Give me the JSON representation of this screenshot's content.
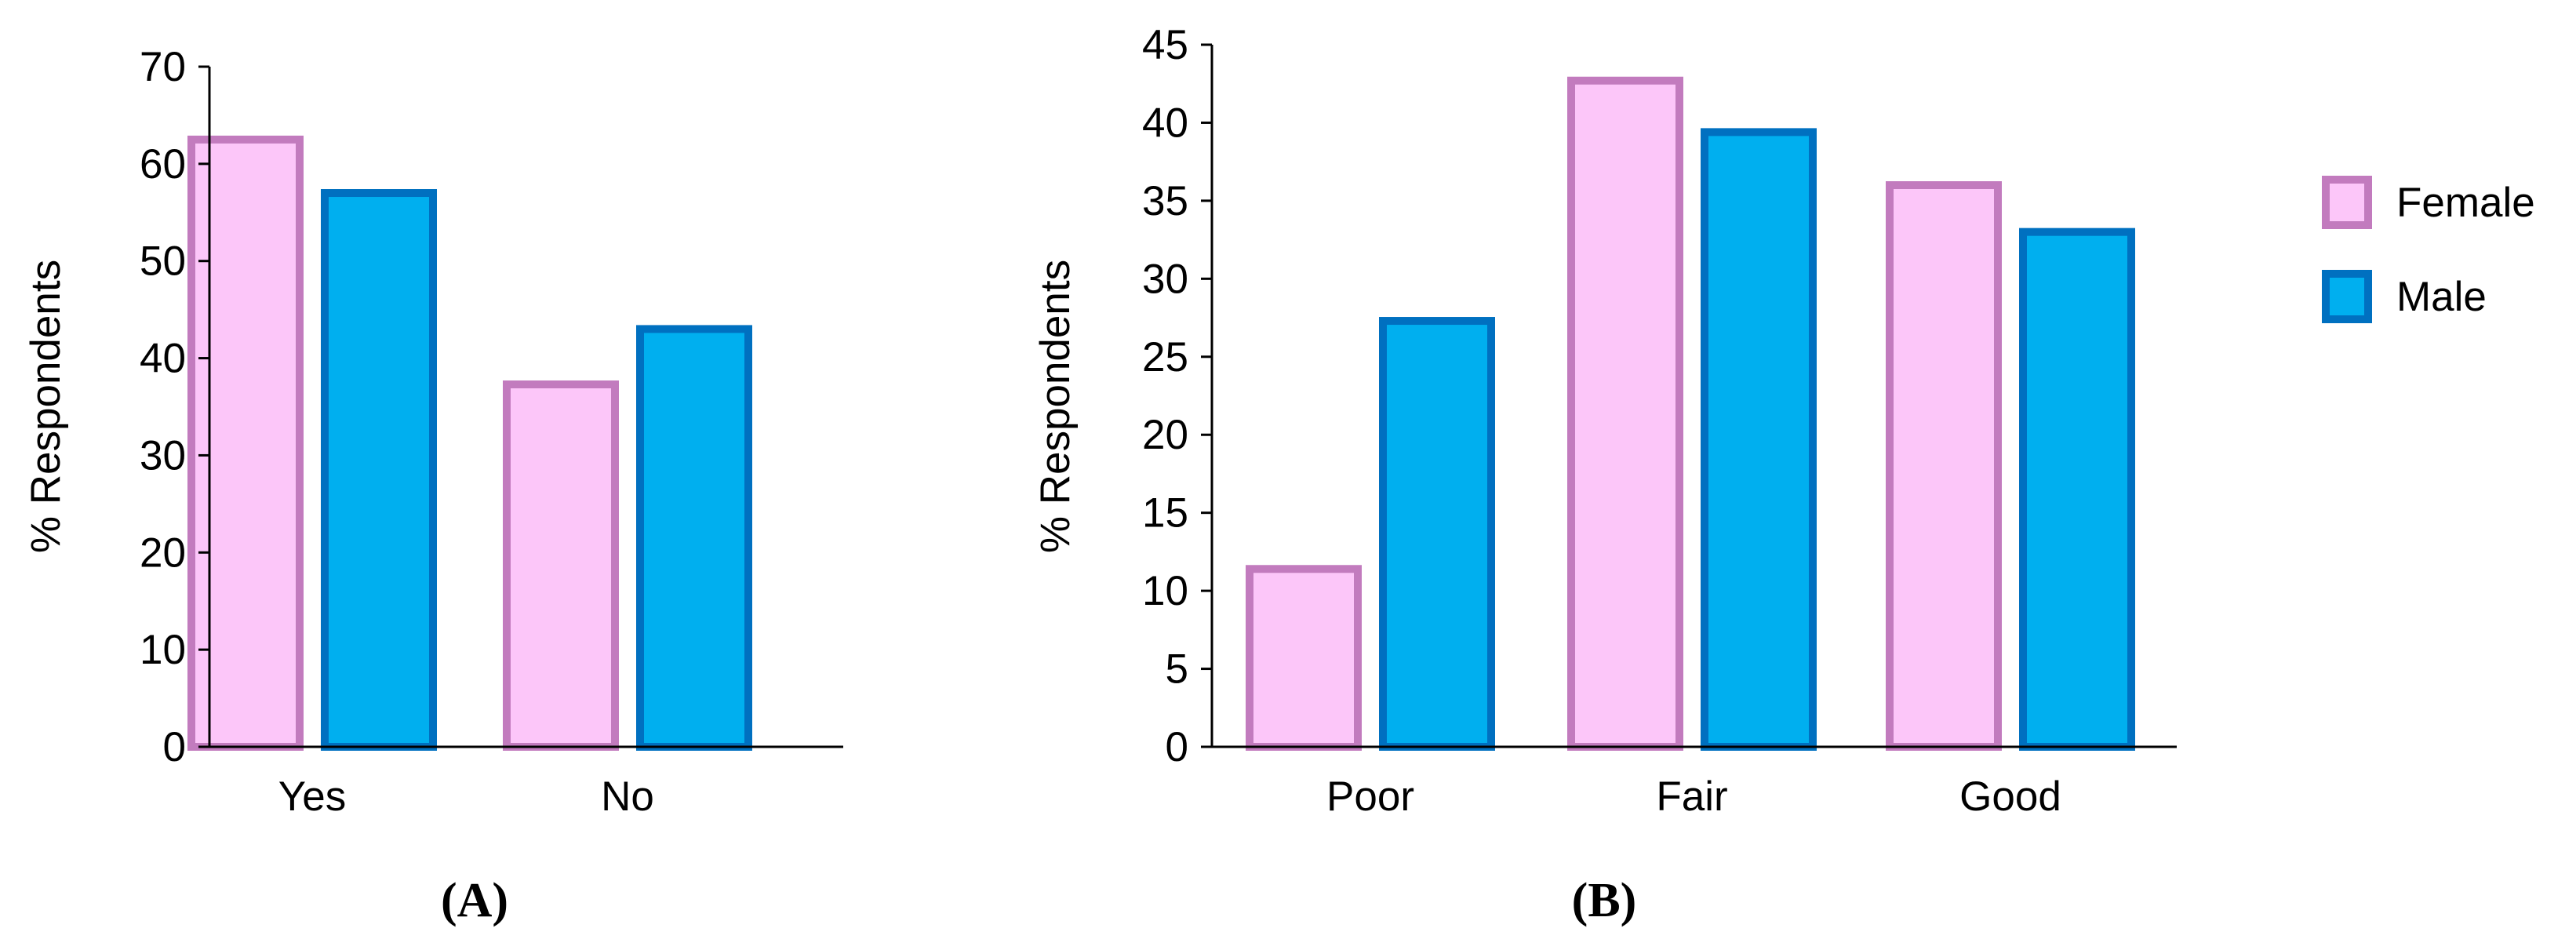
{
  "colors": {
    "female_fill": "#FCC6F9",
    "female_stroke": "#C27BBE",
    "male_fill": "#00AFEF",
    "male_stroke": "#0070C0",
    "axis": "#000000"
  },
  "legend": {
    "placement": "right",
    "items": [
      {
        "label": "Female",
        "series": 0
      },
      {
        "label": "Male",
        "series": 1
      }
    ]
  },
  "chart_data": [
    {
      "type": "bar",
      "panel_label": "(A)",
      "categories": [
        "Yes",
        "No"
      ],
      "series": [
        {
          "name": "Female",
          "values": [
            62.5,
            37.3
          ]
        },
        {
          "name": "Male",
          "values": [
            57,
            43
          ]
        }
      ],
      "title": "",
      "xlabel": "",
      "ylabel": "% Respondents",
      "ylim": [
        0,
        70
      ],
      "yticks": [
        0,
        10,
        20,
        30,
        40,
        50,
        60,
        70
      ],
      "grid": false
    },
    {
      "type": "bar",
      "panel_label": "(B)",
      "categories": [
        "Poor",
        "Fair",
        "Good"
      ],
      "series": [
        {
          "name": "Female",
          "values": [
            11.4,
            42.7,
            36
          ]
        },
        {
          "name": "Male",
          "values": [
            27.3,
            39.4,
            33
          ]
        }
      ],
      "title": "",
      "xlabel": "",
      "ylabel": "% Respondents",
      "ylim": [
        0,
        45
      ],
      "yticks": [
        0,
        5,
        10,
        15,
        20,
        25,
        30,
        35,
        40,
        45
      ],
      "grid": false
    }
  ]
}
